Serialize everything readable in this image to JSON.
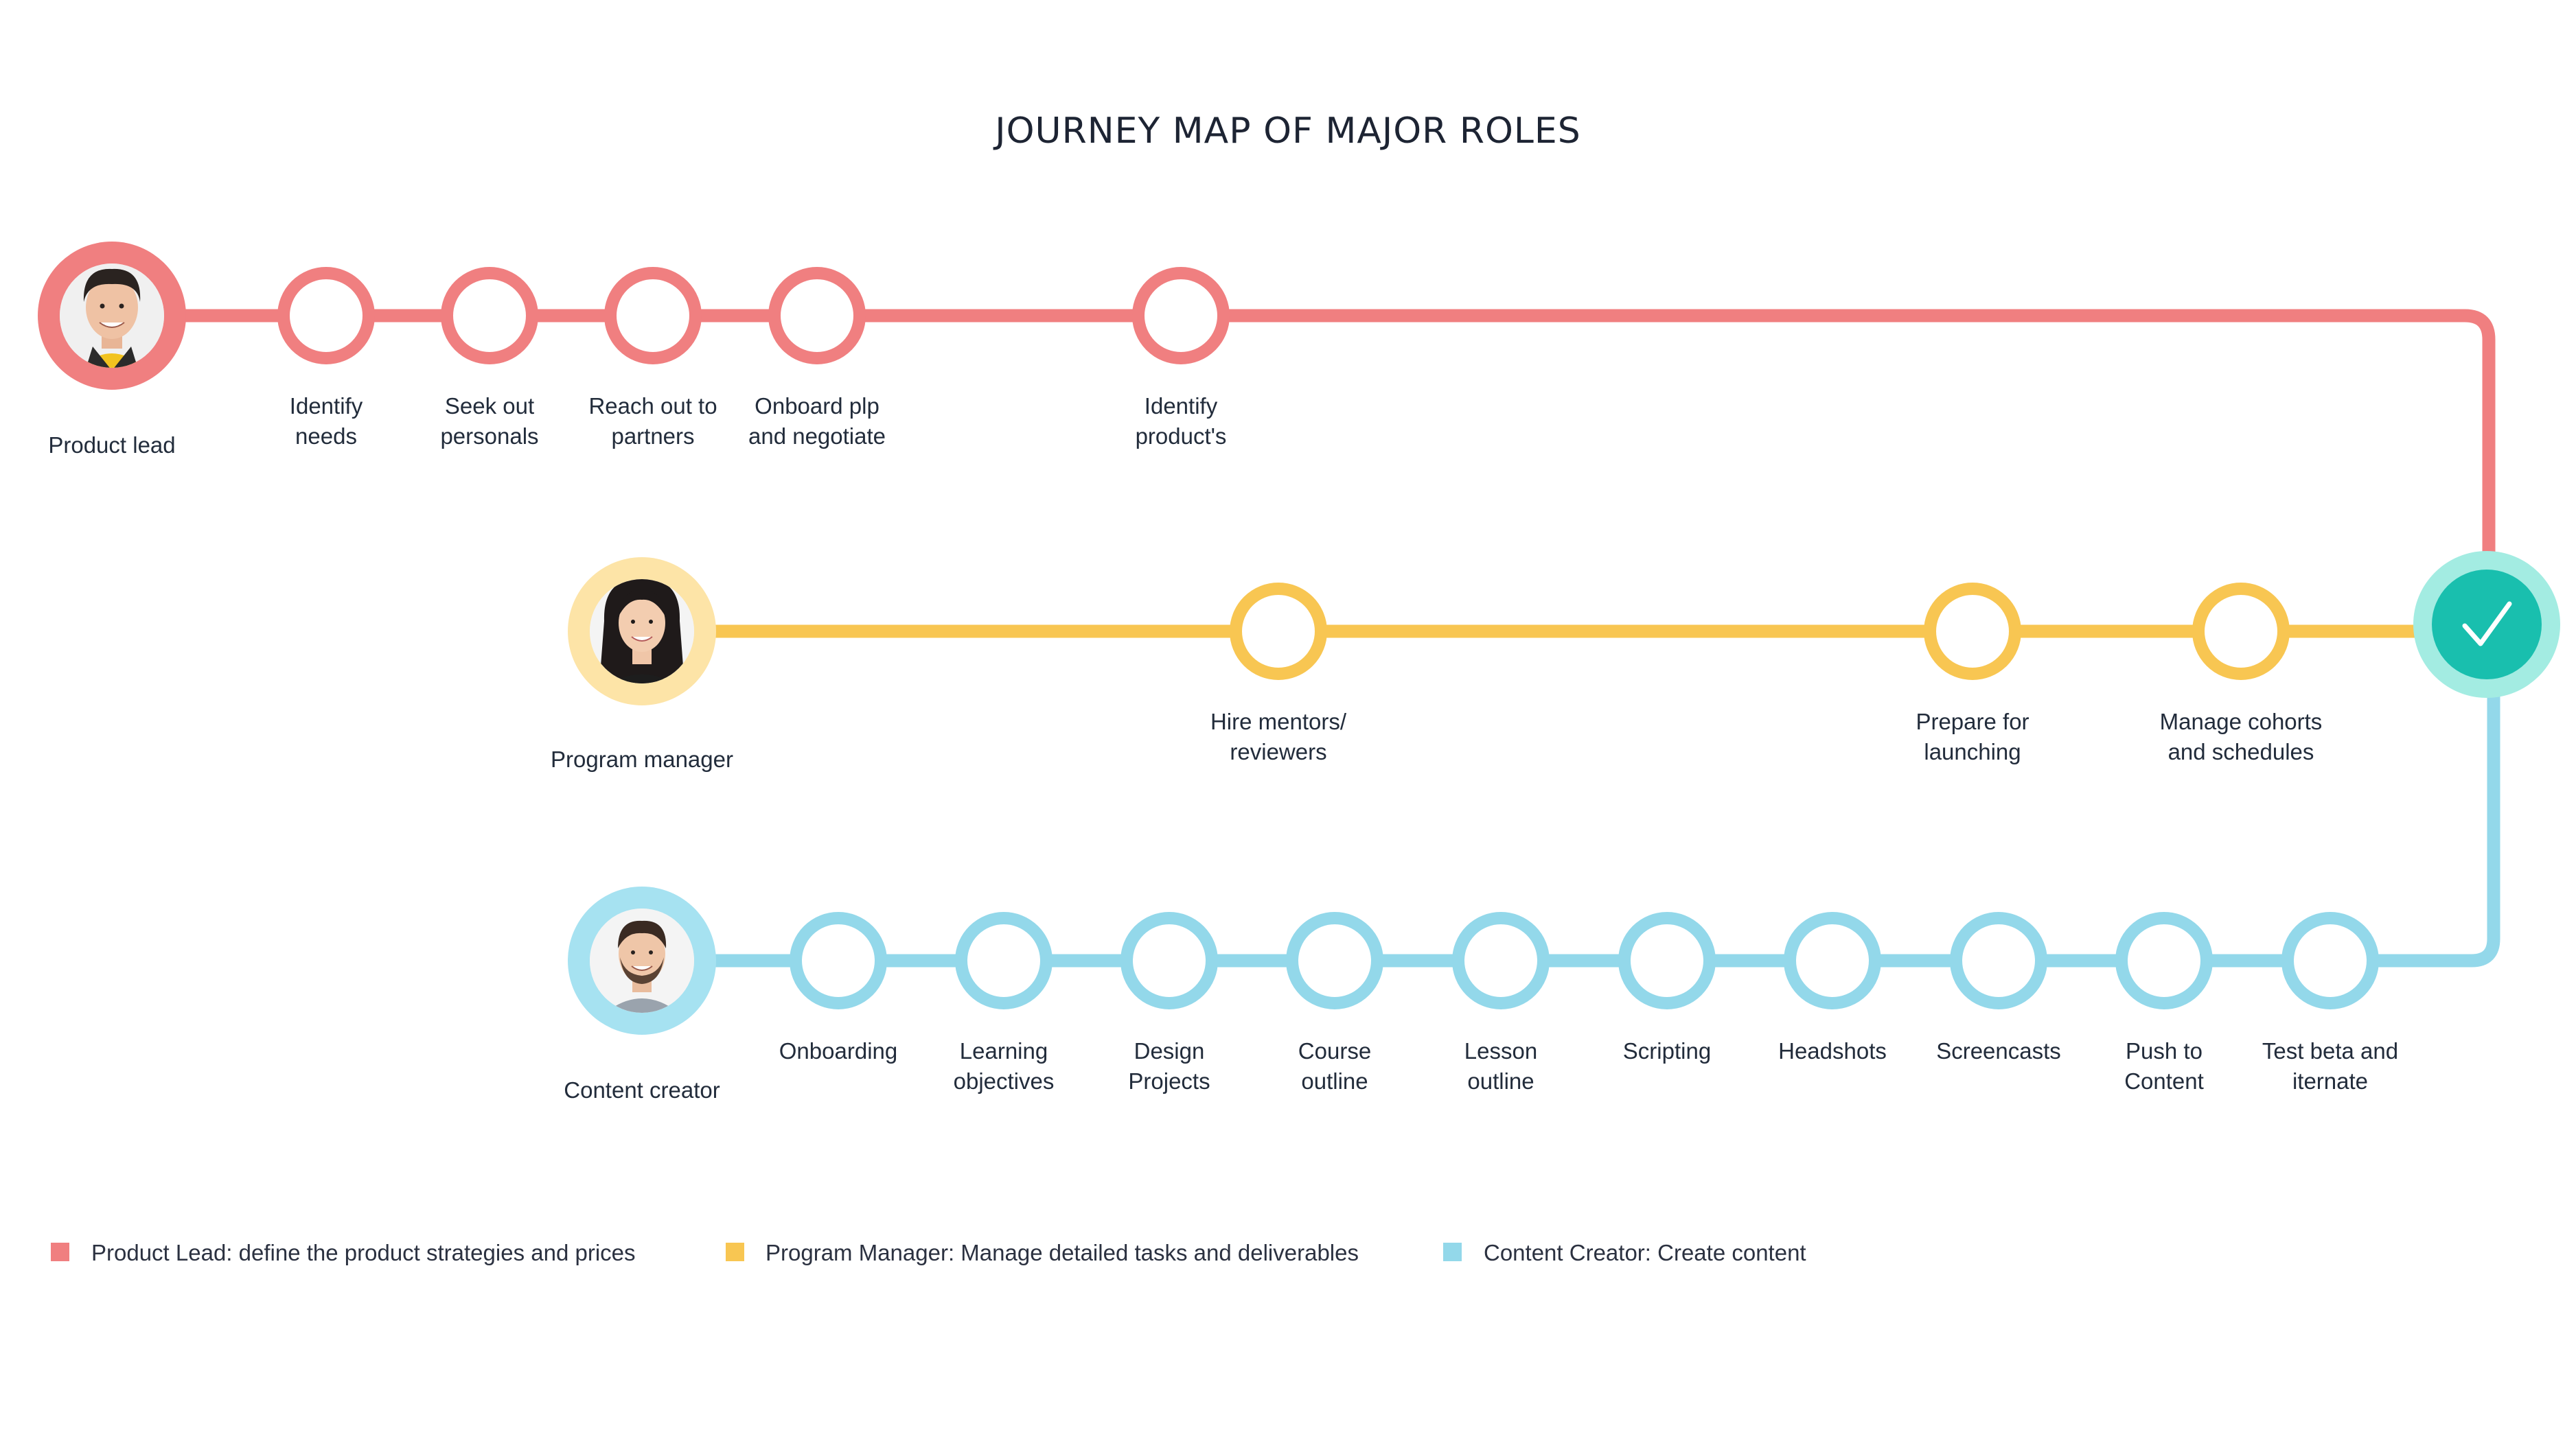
{
  "title": "JOURNEY MAP OF MAJOR ROLES",
  "colors": {
    "product_lead": "#f07f80",
    "program_manager": "#f8c652",
    "content_creator": "#93d8ea",
    "check_fill": "#19bfae",
    "check_ring": "#a3ece2",
    "pm_avatar_ring": "#fde4a7"
  },
  "rows": {
    "product_lead": {
      "role": "Product lead",
      "steps": [
        [
          "Identify",
          "needs"
        ],
        [
          "Seek out",
          "personals"
        ],
        [
          "Reach out to",
          "partners"
        ],
        [
          "Onboard plp",
          "and negotiate"
        ],
        [
          "Identify",
          "product's"
        ]
      ]
    },
    "program_manager": {
      "role": "Program manager",
      "steps": [
        [
          "Hire mentors/",
          "reviewers"
        ],
        [
          "Prepare for",
          "launching"
        ],
        [
          "Manage cohorts",
          "and schedules"
        ]
      ]
    },
    "content_creator": {
      "role": "Content creator",
      "steps": [
        [
          "Onboarding"
        ],
        [
          "Learning",
          "objectives"
        ],
        [
          "Design",
          "Projects"
        ],
        [
          "Course",
          "outline"
        ],
        [
          "Lesson",
          "outline"
        ],
        [
          "Scripting"
        ],
        [
          "Headshots"
        ],
        [
          "Screencasts"
        ],
        [
          "Push to",
          "Content"
        ],
        [
          "Test beta and",
          "iternate"
        ]
      ]
    }
  },
  "milestone_icon": "checkmark-icon",
  "legend": [
    {
      "label": "Product Lead: define the product strategies and prices",
      "color": "#f07f80"
    },
    {
      "label": "Program Manager: Manage detailed tasks and deliverables",
      "color": "#f8c652"
    },
    {
      "label": "Content Creator: Create content",
      "color": "#93d8ea"
    }
  ]
}
